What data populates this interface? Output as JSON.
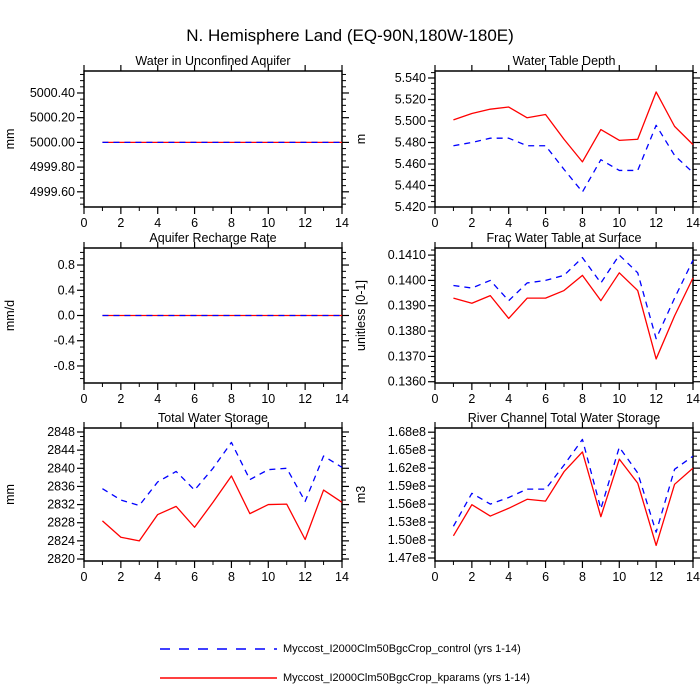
{
  "title": "N. Hemisphere Land (EQ-90N,180W-180E)",
  "legend": {
    "items": [
      {
        "label": "Myccost_I2000Clm50BgcCrop_control (yrs 1-14)",
        "color": "#0000ff",
        "style": "dashed"
      },
      {
        "label": "Myccost_I2000Clm50BgcCrop_kparams (yrs 1-14)",
        "color": "#ff0000",
        "style": "solid"
      }
    ]
  },
  "colors": {
    "control": "#0000ff",
    "kparams": "#ff0000",
    "axis": "#000000"
  },
  "chart_data": [
    {
      "type": "line",
      "title": "Water in Unconfined Aquifer",
      "ylabel": "mm",
      "x": [
        1,
        2,
        3,
        4,
        5,
        6,
        7,
        8,
        9,
        10,
        11,
        12,
        13,
        14
      ],
      "xlim": [
        0,
        14
      ],
      "xticks": {
        "values": [
          0,
          2,
          4,
          6,
          8,
          10,
          12,
          14
        ],
        "labels": [
          "0",
          "2",
          "4",
          "6",
          "8",
          "10",
          "12",
          "14"
        ],
        "minor": [
          1,
          3,
          5,
          7,
          9,
          11,
          13
        ]
      },
      "ylim": [
        4999.477,
        5000.578
      ],
      "yticks": {
        "values": [
          4999.6,
          4999.8,
          5000.0,
          5000.2,
          5000.4
        ],
        "labels": [
          "4999.60",
          "4999.80",
          "5000.00",
          "5000.20",
          "5000.40"
        ],
        "minor_step": 0.05
      },
      "series": [
        {
          "name": "control",
          "color": "#0000ff",
          "style": "dashed",
          "values": [
            5000.0,
            5000.0,
            5000.0,
            5000.0,
            5000.0,
            5000.0,
            5000.0,
            5000.0,
            5000.0,
            5000.0,
            5000.0,
            5000.0,
            5000.0,
            5000.0
          ]
        },
        {
          "name": "kparams",
          "color": "#ff0000",
          "style": "solid",
          "values": [
            5000.0,
            5000.0,
            5000.0,
            5000.0,
            5000.0,
            5000.0,
            5000.0,
            5000.0,
            5000.0,
            5000.0,
            5000.0,
            5000.0,
            5000.0,
            5000.0
          ]
        }
      ]
    },
    {
      "type": "line",
      "title": "Water Table Depth",
      "ylabel": "m",
      "x": [
        1,
        2,
        3,
        4,
        5,
        6,
        7,
        8,
        9,
        10,
        11,
        12,
        13,
        14
      ],
      "xlim": [
        0,
        14
      ],
      "xticks": {
        "values": [
          0,
          2,
          4,
          6,
          8,
          10,
          12,
          14
        ],
        "labels": [
          "0",
          "2",
          "4",
          "6",
          "8",
          "10",
          "12",
          "14"
        ],
        "minor": [
          1,
          3,
          5,
          7,
          9,
          11,
          13
        ]
      },
      "ylim": [
        5.42,
        5.5465
      ],
      "yticks": {
        "values": [
          5.42,
          5.44,
          5.46,
          5.48,
          5.5,
          5.52,
          5.54
        ],
        "labels": [
          "5.420",
          "5.440",
          "5.460",
          "5.480",
          "5.500",
          "5.520",
          "5.540"
        ],
        "minor_step": 0.005
      },
      "series": [
        {
          "name": "control",
          "color": "#0000ff",
          "style": "dashed",
          "values": [
            5.477,
            5.48,
            5.484,
            5.484,
            5.477,
            5.477,
            5.455,
            5.434,
            5.464,
            5.454,
            5.454,
            5.496,
            5.468,
            5.452
          ]
        },
        {
          "name": "kparams",
          "color": "#ff0000",
          "style": "solid",
          "values": [
            5.501,
            5.507,
            5.511,
            5.513,
            5.503,
            5.506,
            5.483,
            5.462,
            5.492,
            5.482,
            5.483,
            5.527,
            5.495,
            5.478
          ]
        }
      ]
    },
    {
      "type": "line",
      "title": "Aquifer Recharge Rate",
      "ylabel": "mm/d",
      "x": [
        1,
        2,
        3,
        4,
        5,
        6,
        7,
        8,
        9,
        10,
        11,
        12,
        13,
        14
      ],
      "xlim": [
        0,
        14
      ],
      "xticks": {
        "values": [
          0,
          2,
          4,
          6,
          8,
          10,
          12,
          14
        ],
        "labels": [
          "0",
          "2",
          "4",
          "6",
          "8",
          "10",
          "12",
          "14"
        ],
        "minor": [
          1,
          3,
          5,
          7,
          9,
          11,
          13
        ]
      },
      "ylim": [
        -1.07,
        1.07
      ],
      "yticks": {
        "values": [
          -0.8,
          -0.4,
          0.0,
          0.4,
          0.8
        ],
        "labels": [
          "-0.8",
          "-0.4",
          "0.0",
          "0.4",
          "0.8"
        ],
        "minor_step": 0.1
      },
      "series": [
        {
          "name": "control",
          "color": "#0000ff",
          "style": "dashed",
          "values": [
            0.0,
            0.0,
            0.0,
            0.0,
            0.0,
            0.0,
            0.0,
            0.0,
            0.0,
            0.0,
            0.0,
            0.0,
            0.0,
            0.0
          ]
        },
        {
          "name": "kparams",
          "color": "#ff0000",
          "style": "solid",
          "values": [
            0.0,
            0.0,
            0.0,
            0.0,
            0.0,
            0.0,
            0.0,
            0.0,
            0.0,
            0.0,
            0.0,
            0.0,
            0.0,
            0.0
          ]
        }
      ]
    },
    {
      "type": "line",
      "title": "Frac Water Table at Surface",
      "ylabel": "unitless [0-1]",
      "x": [
        1,
        2,
        3,
        4,
        5,
        6,
        7,
        8,
        9,
        10,
        11,
        12,
        13,
        14
      ],
      "xlim": [
        0,
        14
      ],
      "xticks": {
        "values": [
          0,
          2,
          4,
          6,
          8,
          10,
          12,
          14
        ],
        "labels": [
          "0",
          "2",
          "4",
          "6",
          "8",
          "10",
          "12",
          "14"
        ],
        "minor": [
          1,
          3,
          5,
          7,
          9,
          11,
          13
        ]
      },
      "ylim": [
        0.13595,
        0.14128
      ],
      "yticks": {
        "values": [
          0.136,
          0.137,
          0.138,
          0.139,
          0.14,
          0.141
        ],
        "labels": [
          "0.1360",
          "0.1370",
          "0.1380",
          "0.1390",
          "0.1400",
          "0.1410"
        ],
        "minor_step": 0.0002
      },
      "series": [
        {
          "name": "control",
          "color": "#0000ff",
          "style": "dashed",
          "values": [
            0.1398,
            0.1397,
            0.14,
            0.1392,
            0.1399,
            0.14,
            0.1402,
            0.1409,
            0.1399,
            0.141,
            0.1403,
            0.1377,
            0.1393,
            0.1408
          ]
        },
        {
          "name": "kparams",
          "color": "#ff0000",
          "style": "solid",
          "values": [
            0.1393,
            0.1391,
            0.1394,
            0.1385,
            0.1393,
            0.1393,
            0.1396,
            0.1402,
            0.1392,
            0.1403,
            0.1396,
            0.1369,
            0.1386,
            0.1401
          ]
        }
      ]
    },
    {
      "type": "line",
      "title": "Total Water Storage",
      "ylabel": "mm",
      "x": [
        1,
        2,
        3,
        4,
        5,
        6,
        7,
        8,
        9,
        10,
        11,
        12,
        13,
        14
      ],
      "xlim": [
        0,
        14
      ],
      "xticks": {
        "values": [
          0,
          2,
          4,
          6,
          8,
          10,
          12,
          14
        ],
        "labels": [
          "0",
          "2",
          "4",
          "6",
          "8",
          "10",
          "12",
          "14"
        ],
        "minor": [
          1,
          3,
          5,
          7,
          9,
          11,
          13
        ]
      },
      "ylim": [
        2819.56,
        2848.88
      ],
      "yticks": {
        "values": [
          2820,
          2824,
          2828,
          2832,
          2836,
          2840,
          2844,
          2848
        ],
        "labels": [
          "2820",
          "2824",
          "2828",
          "2832",
          "2836",
          "2840",
          "2844",
          "2848"
        ],
        "minor_step": 1
      },
      "series": [
        {
          "name": "control",
          "color": "#0000ff",
          "style": "dashed",
          "values": [
            2835.5,
            2833.0,
            2831.8,
            2837.0,
            2839.3,
            2835.2,
            2840.0,
            2845.7,
            2837.5,
            2839.7,
            2840.0,
            2832.7,
            2842.7,
            2840.2
          ]
        },
        {
          "name": "kparams",
          "color": "#ff0000",
          "style": "solid",
          "values": [
            2828.4,
            2824.8,
            2824.0,
            2829.8,
            2831.6,
            2827.0,
            2832.5,
            2838.3,
            2830.0,
            2832.0,
            2832.1,
            2824.3,
            2835.2,
            2832.5
          ]
        }
      ]
    },
    {
      "type": "line",
      "title": "River Channel Total Water Storage",
      "ylabel": "m3",
      "x": [
        1,
        2,
        3,
        4,
        5,
        6,
        7,
        8,
        9,
        10,
        11,
        12,
        13,
        14
      ],
      "xlim": [
        0,
        14
      ],
      "xticks": {
        "values": [
          0,
          2,
          4,
          6,
          8,
          10,
          12,
          14
        ],
        "labels": [
          "0",
          "2",
          "4",
          "6",
          "8",
          "10",
          "12",
          "14"
        ],
        "minor": [
          1,
          3,
          5,
          7,
          9,
          11,
          13
        ]
      },
      "ylim": [
        146500000.0,
        168700000.0
      ],
      "yticks": {
        "values": [
          147000000.0,
          150000000.0,
          153000000.0,
          156000000.0,
          159000000.0,
          162000000.0,
          165000000.0,
          168000000.0
        ],
        "labels": [
          "1.47e8",
          "1.50e8",
          "1.53e8",
          "1.56e8",
          "1.59e8",
          "1.62e8",
          "1.65e8",
          "1.68e8"
        ],
        "minor_step": 1000000.0
      },
      "series": [
        {
          "name": "control",
          "color": "#0000ff",
          "style": "dashed",
          "values": [
            152300000.0,
            157800000.0,
            156000000.0,
            157100000.0,
            158500000.0,
            158500000.0,
            162500000.0,
            166800000.0,
            155200000.0,
            165500000.0,
            161200000.0,
            151300000.0,
            161800000.0,
            164000000.0
          ]
        },
        {
          "name": "kparams",
          "color": "#ff0000",
          "style": "solid",
          "values": [
            150700000.0,
            155900000.0,
            154000000.0,
            155300000.0,
            156800000.0,
            156500000.0,
            161400000.0,
            164700000.0,
            153900000.0,
            163500000.0,
            159500000.0,
            149100000.0,
            159300000.0,
            162000000.0
          ]
        }
      ]
    }
  ]
}
